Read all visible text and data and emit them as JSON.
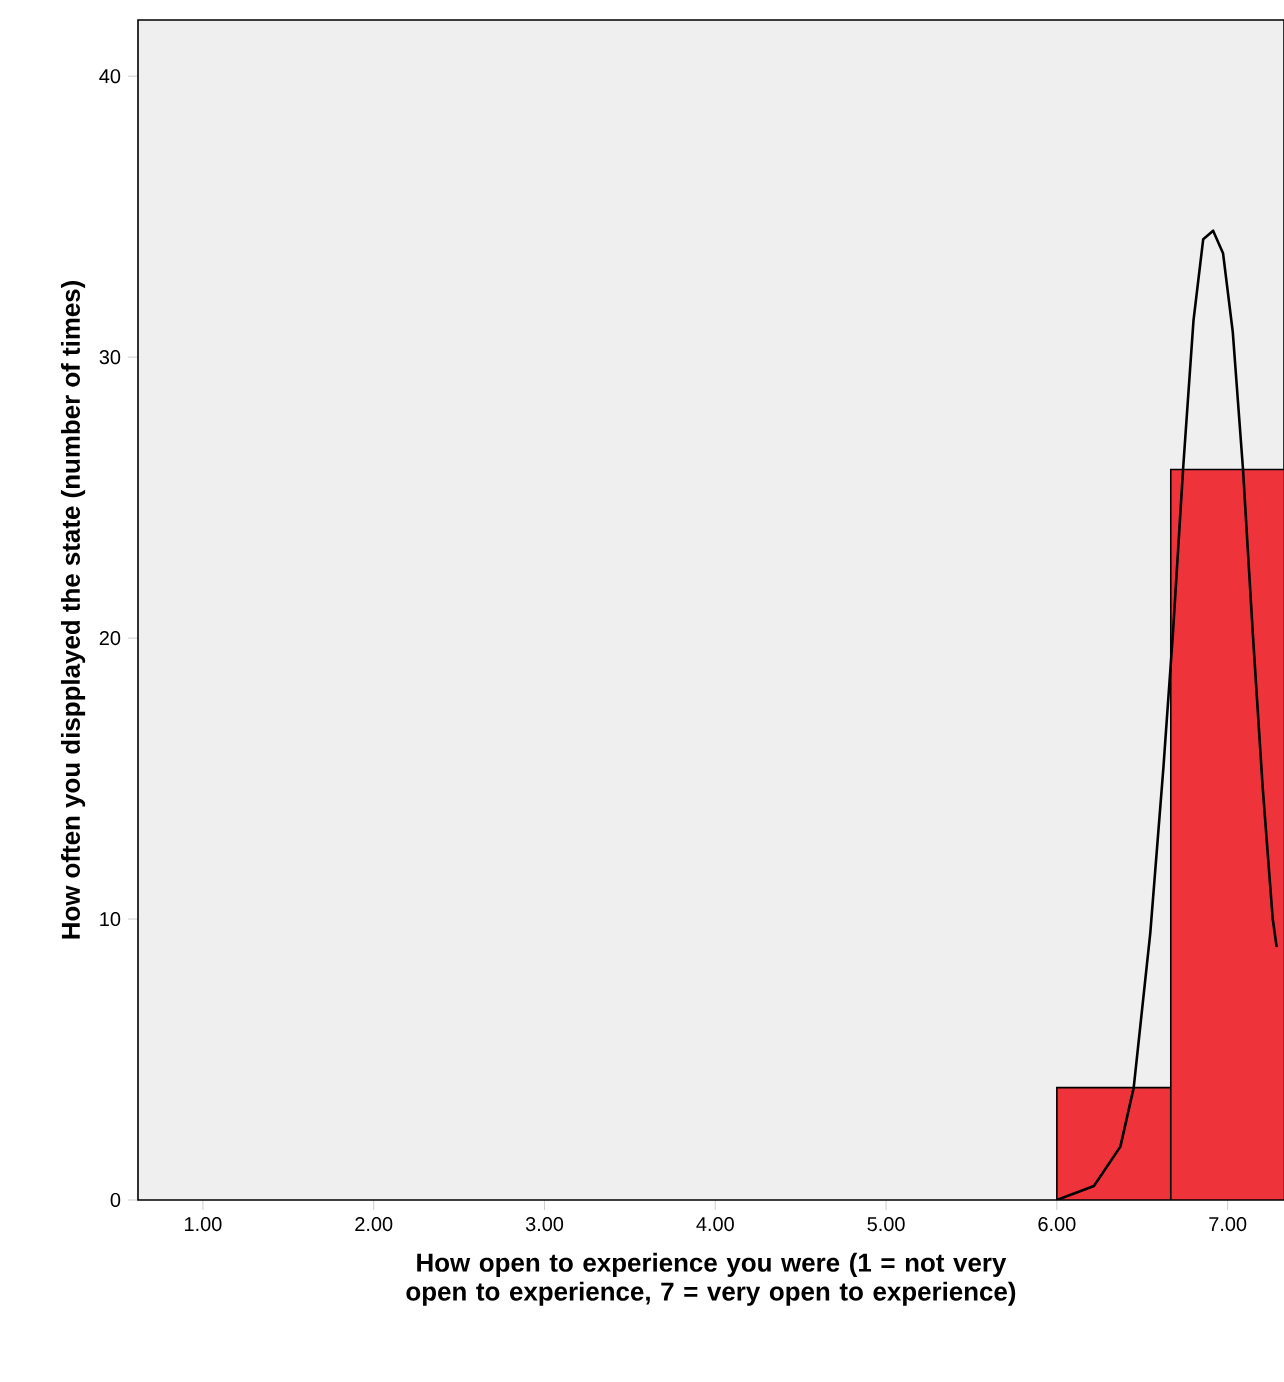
{
  "chart_data": {
    "type": "histogram",
    "xlabel": "How open to experience you were (1 = not very open to experience, 7 = very open to experience)",
    "ylabel": "How often you dispplayed the state (number of times)",
    "bins": [
      6.0,
      6.667,
      7.333
    ],
    "values": [
      4,
      26
    ],
    "color": "#ef333b",
    "series": [
      {
        "type": "line",
        "color": "#000000",
        "x": [
          6.0,
          6.217,
          6.372,
          6.45,
          6.547,
          6.624,
          6.68,
          6.74,
          6.8,
          6.857,
          6.915,
          6.973,
          7.03,
          7.09,
          7.147,
          7.205,
          7.264,
          7.287
        ],
        "values": [
          0,
          0.5,
          1.9,
          4,
          9.5,
          15.4,
          20.2,
          26.1,
          31.3,
          34.2,
          34.5,
          33.7,
          30.9,
          26,
          20.2,
          14.7,
          10,
          9
        ]
      }
    ],
    "xlim": [
      0.62,
      7.33
    ],
    "ylim": [
      0,
      42
    ],
    "xticks": [
      {
        "value": 1,
        "label": "1.00"
      },
      {
        "value": 2,
        "label": "2.00"
      },
      {
        "value": 3,
        "label": "3.00"
      },
      {
        "value": 4,
        "label": "4.00"
      },
      {
        "value": 5,
        "label": "5.00"
      },
      {
        "value": 6,
        "label": "6.00"
      },
      {
        "value": 7,
        "label": "7.00"
      }
    ],
    "yticks": [
      0,
      10,
      20,
      30,
      40
    ],
    "grid": false,
    "legend": false
  }
}
